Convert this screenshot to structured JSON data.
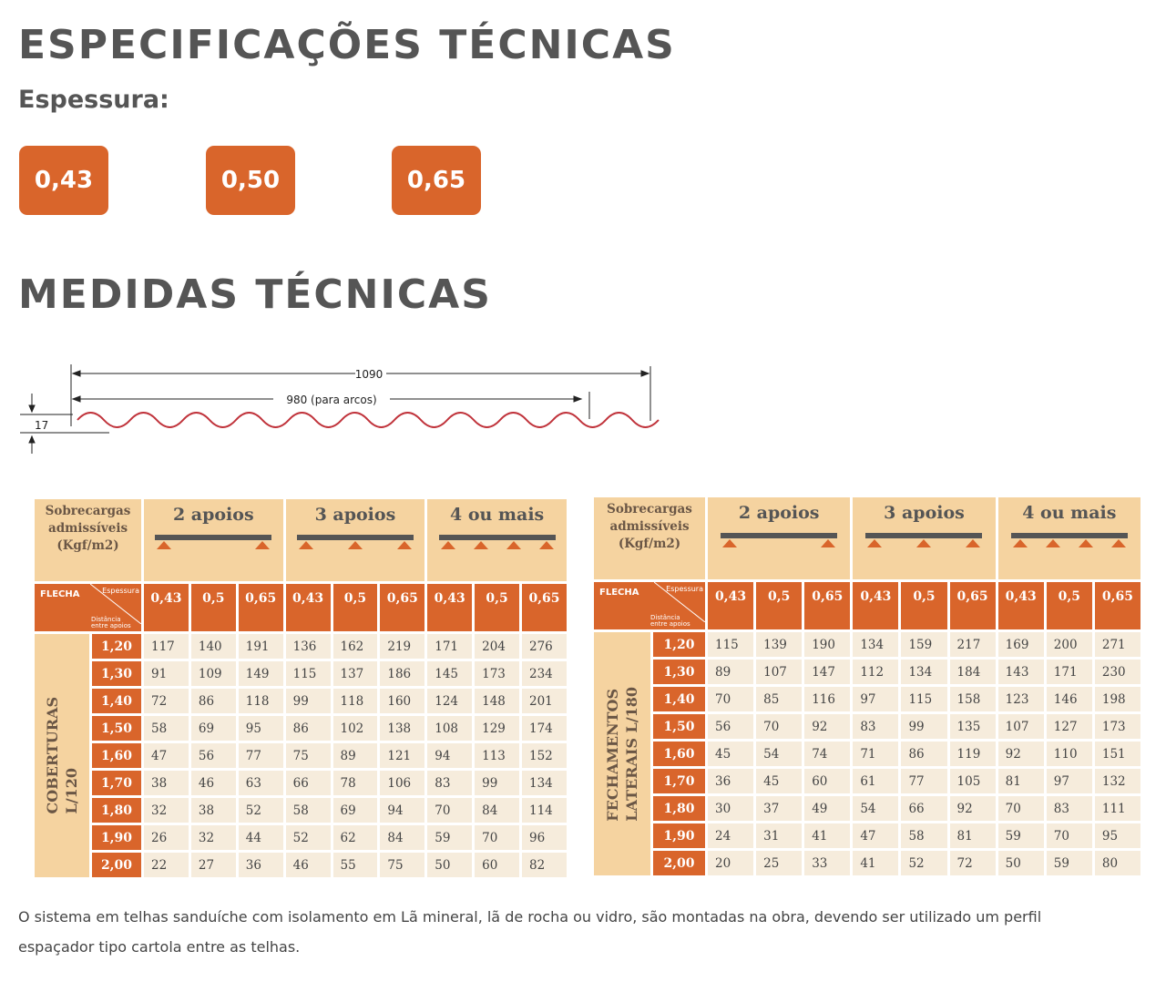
{
  "title": "ESPECIFICAÇÕES TÉCNICAS",
  "thickness_label": "Espessura:",
  "thickness_buttons": [
    "0,43",
    "0,50",
    "0,65"
  ],
  "measures_title": "MEDIDAS TÉCNICAS",
  "diagram": {
    "width_total": "1090",
    "width_arcs": "980 (para arcos)",
    "height": "17"
  },
  "tables": [
    {
      "header_label": "Sobrecargas admissíveis (Kgf/m2)",
      "groups": [
        "2 apoios",
        "3 apoios",
        "4 ou mais"
      ],
      "flecha": "FLECHA",
      "espessura": "Espessura",
      "distancia": "Distância entre apoios",
      "thicknesses": [
        "0,43",
        "0,5",
        "0,65",
        "0,43",
        "0,5",
        "0,65",
        "0,43",
        "0,5",
        "0,65"
      ],
      "side_label": [
        "COBERTURAS",
        "L/120"
      ],
      "rows": [
        {
          "span": "1,20",
          "values": [
            117,
            140,
            191,
            136,
            162,
            219,
            171,
            204,
            276
          ]
        },
        {
          "span": "1,30",
          "values": [
            91,
            109,
            149,
            115,
            137,
            186,
            145,
            173,
            234
          ]
        },
        {
          "span": "1,40",
          "values": [
            72,
            86,
            118,
            99,
            118,
            160,
            124,
            148,
            201
          ]
        },
        {
          "span": "1,50",
          "values": [
            58,
            69,
            95,
            86,
            102,
            138,
            108,
            129,
            174
          ]
        },
        {
          "span": "1,60",
          "values": [
            47,
            56,
            77,
            75,
            89,
            121,
            94,
            113,
            152
          ]
        },
        {
          "span": "1,70",
          "values": [
            38,
            46,
            63,
            66,
            78,
            106,
            83,
            99,
            134
          ]
        },
        {
          "span": "1,80",
          "values": [
            32,
            38,
            52,
            58,
            69,
            94,
            70,
            84,
            114
          ]
        },
        {
          "span": "1,90",
          "values": [
            26,
            32,
            44,
            52,
            62,
            84,
            59,
            70,
            96
          ]
        },
        {
          "span": "2,00",
          "values": [
            22,
            27,
            36,
            46,
            55,
            75,
            50,
            60,
            82
          ]
        }
      ]
    },
    {
      "header_label": "Sobrecargas admissíveis (Kgf/m2)",
      "groups": [
        "2 apoios",
        "3 apoios",
        "4 ou mais"
      ],
      "flecha": "FLECHA",
      "espessura": "Espessura",
      "distancia": "Distância entre apoios",
      "thicknesses": [
        "0,43",
        "0,5",
        "0,65",
        "0,43",
        "0,5",
        "0,65",
        "0,43",
        "0,5",
        "0,65"
      ],
      "side_label": [
        "FECHAMENTOS",
        "LATERAIS L/180"
      ],
      "rows": [
        {
          "span": "1,20",
          "values": [
            115,
            139,
            190,
            134,
            159,
            217,
            169,
            200,
            271
          ]
        },
        {
          "span": "1,30",
          "values": [
            89,
            107,
            147,
            112,
            134,
            184,
            143,
            171,
            230
          ]
        },
        {
          "span": "1,40",
          "values": [
            70,
            85,
            116,
            97,
            115,
            158,
            123,
            146,
            198
          ]
        },
        {
          "span": "1,50",
          "values": [
            56,
            70,
            92,
            83,
            99,
            135,
            107,
            127,
            173
          ]
        },
        {
          "span": "1,60",
          "values": [
            45,
            54,
            74,
            71,
            86,
            119,
            92,
            110,
            151
          ]
        },
        {
          "span": "1,70",
          "values": [
            36,
            45,
            60,
            61,
            77,
            105,
            81,
            97,
            132
          ]
        },
        {
          "span": "1,80",
          "values": [
            30,
            37,
            49,
            54,
            66,
            92,
            70,
            83,
            111
          ]
        },
        {
          "span": "1,90",
          "values": [
            24,
            31,
            41,
            47,
            58,
            81,
            59,
            70,
            95
          ]
        },
        {
          "span": "2,00",
          "values": [
            20,
            25,
            33,
            41,
            52,
            72,
            50,
            59,
            80
          ]
        }
      ]
    }
  ],
  "footer": "O sistema em telhas sanduíche com isolamento em Lã mineral, lã de rocha ou vidro, são montadas na obra, devendo ser utilizado um perfil espaçador tipo cartola entre as telhas."
}
